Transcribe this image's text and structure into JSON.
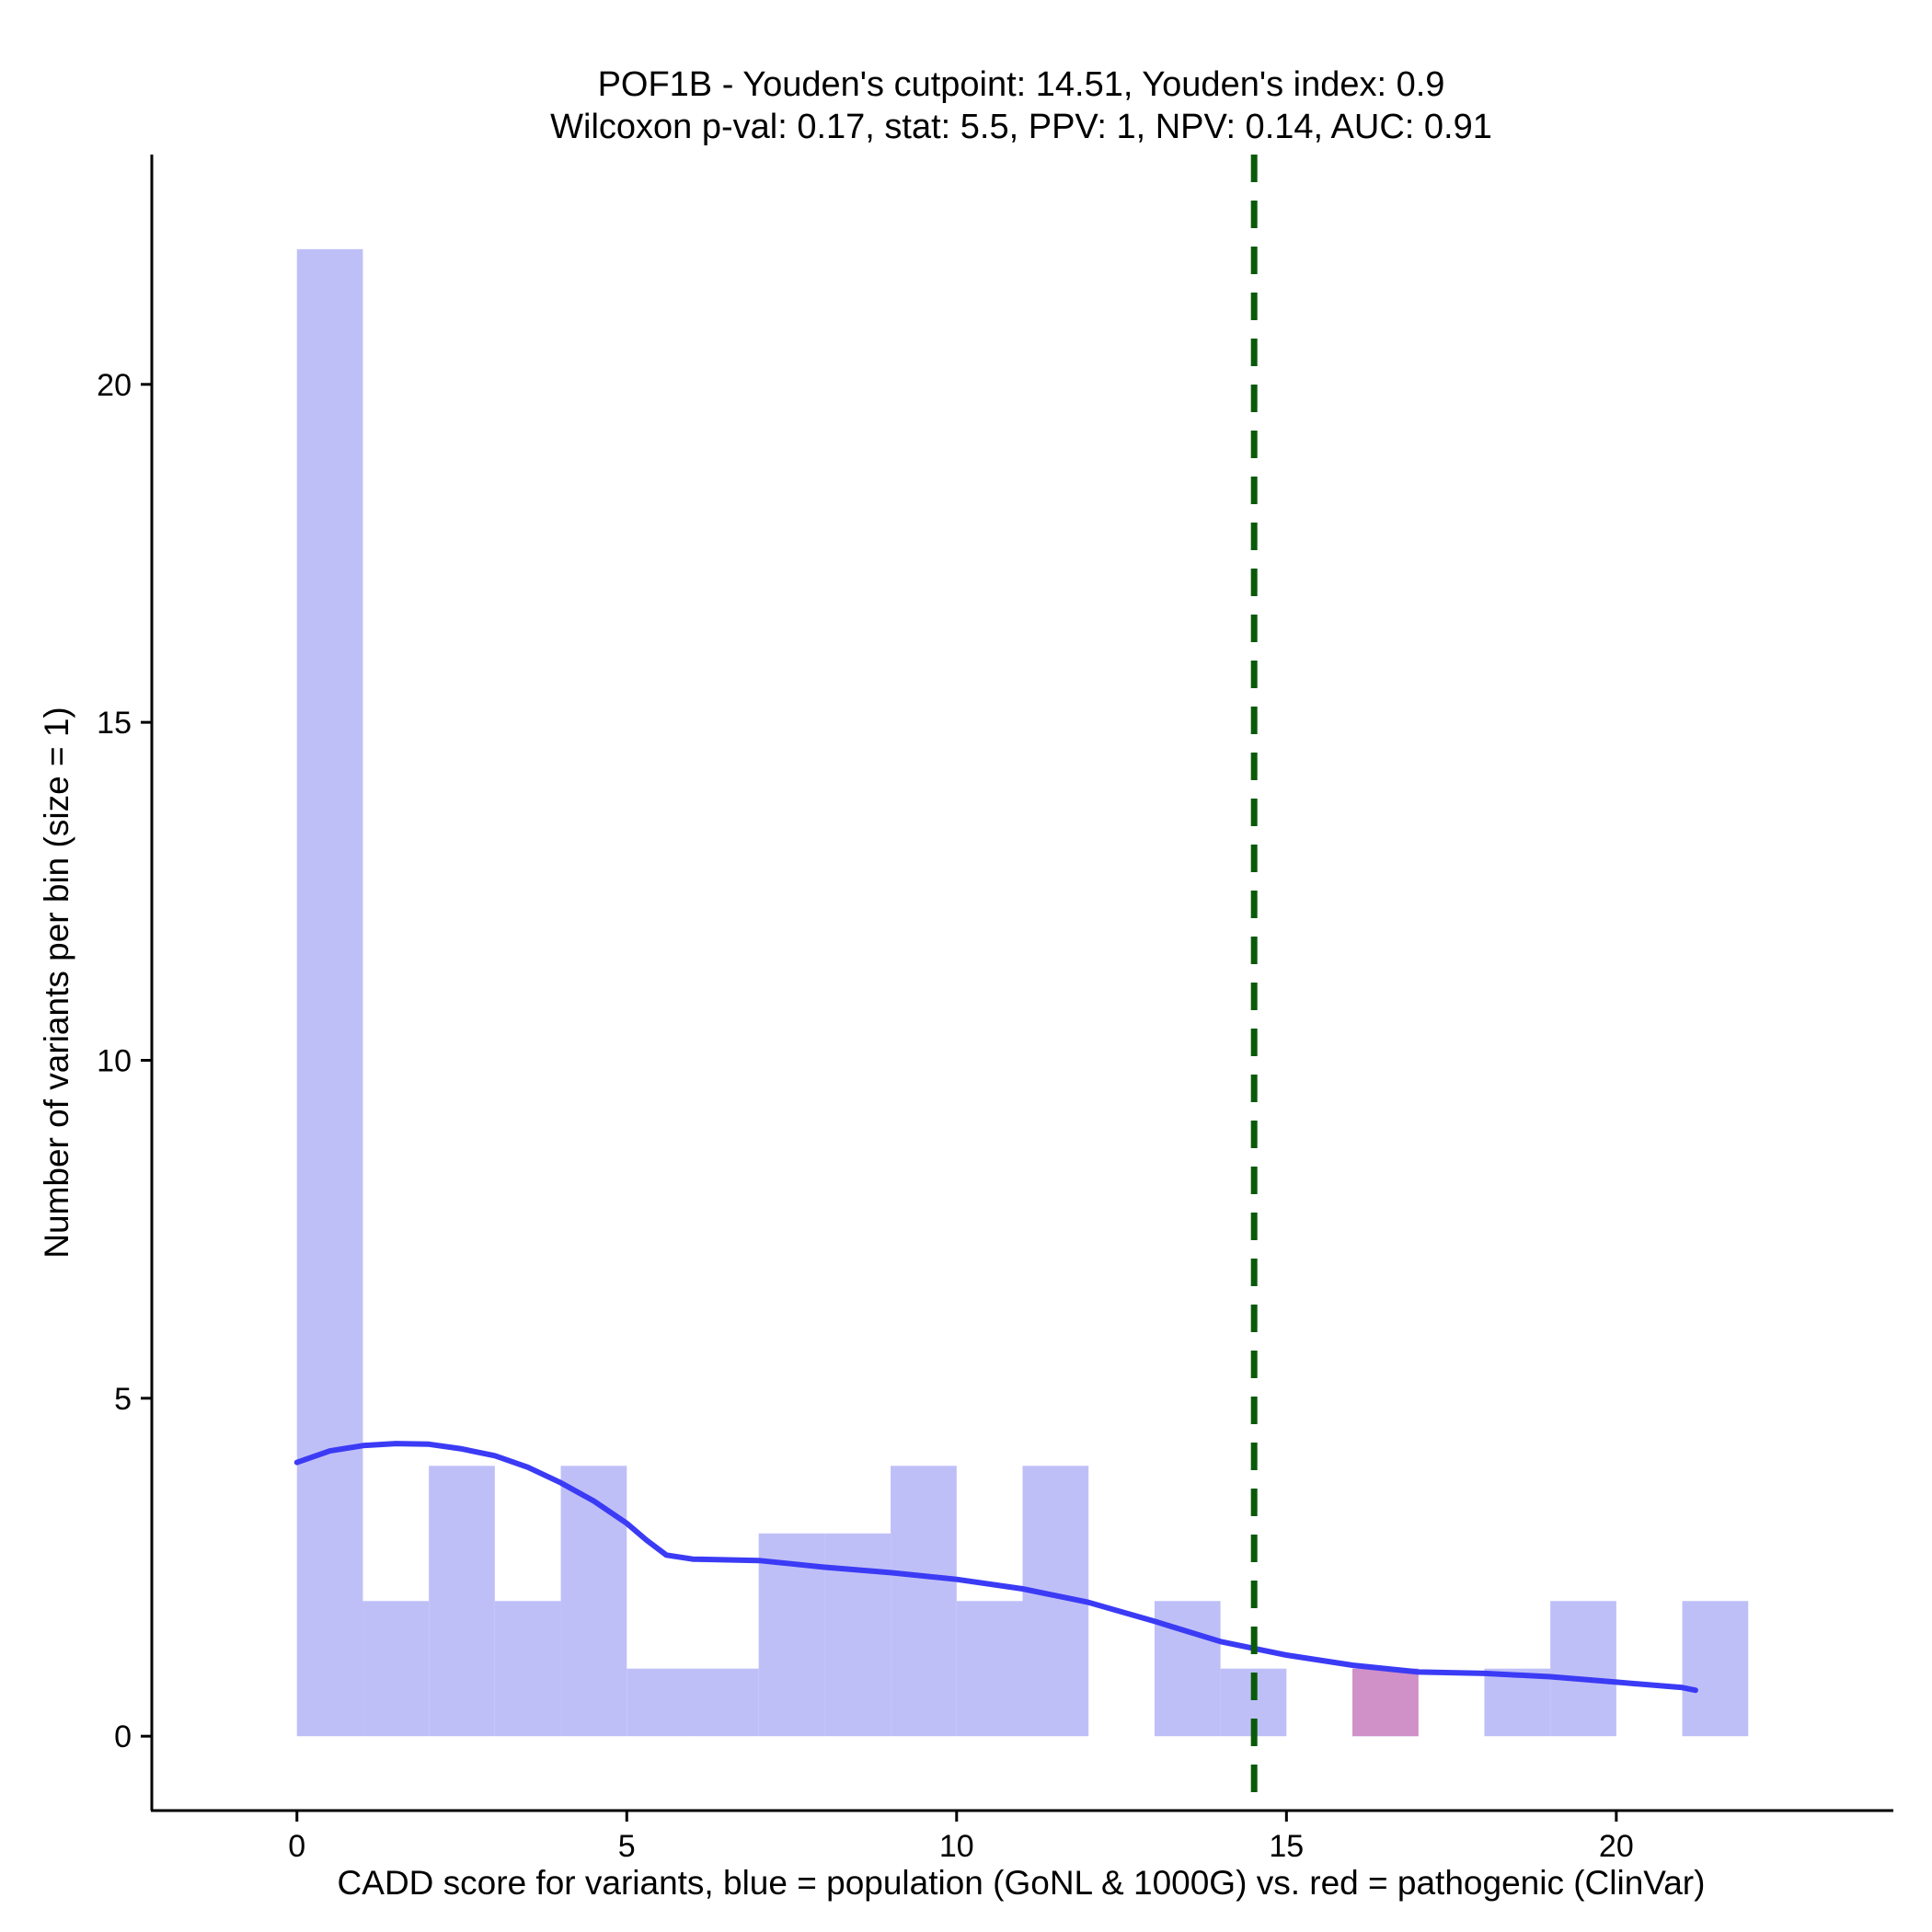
{
  "chart_data": {
    "type": "bar",
    "title_line1": "POF1B - Youden's cutpoint: 14.51, Youden's index: 0.9",
    "title_line2": "Wilcoxon p-val: 0.17, stat: 5.5, PPV: 1, NPV: 0.14, AUC: 0.91",
    "xlabel": "CADD score for variants, blue = population (GoNL & 1000G) vs. red = pathogenic (ClinVar)",
    "ylabel": "Number of variants per bin (size = 1)",
    "xlim": [
      -2.2,
      24.2
    ],
    "ylim": [
      -1.1,
      23.4
    ],
    "x_ticks": [
      0,
      5,
      10,
      15,
      20
    ],
    "x_tick_labels": [
      "0",
      "5",
      "10",
      "15",
      "20"
    ],
    "y_ticks": [
      0,
      5,
      10,
      15,
      20
    ],
    "y_tick_labels": [
      "0",
      "5",
      "10",
      "15",
      "20"
    ],
    "bin_width": 1,
    "series": [
      {
        "name": "population (GoNL & 1000G)",
        "color": "#bfbff8",
        "bins": [
          {
            "x0": 0,
            "count": 22
          },
          {
            "x0": 1,
            "count": 2
          },
          {
            "x0": 2,
            "count": 4
          },
          {
            "x0": 3,
            "count": 2
          },
          {
            "x0": 4,
            "count": 4
          },
          {
            "x0": 5,
            "count": 1
          },
          {
            "x0": 6,
            "count": 1
          },
          {
            "x0": 7,
            "count": 3
          },
          {
            "x0": 8,
            "count": 3
          },
          {
            "x0": 9,
            "count": 4
          },
          {
            "x0": 10,
            "count": 2
          },
          {
            "x0": 11,
            "count": 4
          },
          {
            "x0": 13,
            "count": 2
          },
          {
            "x0": 14,
            "count": 1
          },
          {
            "x0": 16,
            "count": 1
          },
          {
            "x0": 18,
            "count": 1
          },
          {
            "x0": 19,
            "count": 2
          },
          {
            "x0": 21,
            "count": 2
          }
        ]
      },
      {
        "name": "pathogenic (ClinVar)",
        "color": "#d090c8",
        "bins": [
          {
            "x0": 16,
            "count": 1
          }
        ]
      }
    ],
    "density_curve": {
      "color": "#3b3bf5",
      "x": [
        0,
        0.5,
        1,
        1.5,
        2,
        2.5,
        3,
        3.5,
        4,
        4.5,
        5,
        5.3,
        5.6,
        6,
        7,
        7.5,
        8,
        9,
        10,
        11,
        12,
        13,
        14,
        15,
        16,
        17,
        18,
        19,
        20,
        21,
        21.2
      ],
      "y": [
        4.05,
        4.22,
        4.3,
        4.33,
        4.32,
        4.25,
        4.15,
        3.98,
        3.75,
        3.48,
        3.15,
        2.9,
        2.68,
        2.62,
        2.6,
        2.55,
        2.5,
        2.42,
        2.32,
        2.18,
        1.98,
        1.7,
        1.4,
        1.2,
        1.05,
        0.95,
        0.93,
        0.88,
        0.8,
        0.72,
        0.68
      ]
    },
    "cutpoint": {
      "x": 14.51,
      "color": "#0a5a0a",
      "style": "dashed"
    },
    "grid": false
  }
}
